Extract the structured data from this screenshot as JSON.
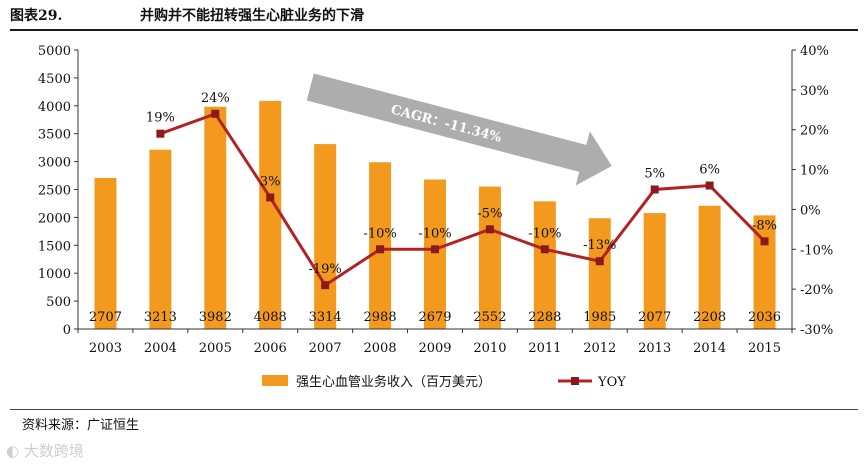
{
  "header": {
    "figure_number": "图表29.",
    "title": "并购并不能扭转强生心脏业务的下滑"
  },
  "footer": {
    "source": "资料来源：广证恒生",
    "watermark": "大数跨境"
  },
  "colors": {
    "bar": "#F39A1E",
    "line": "#B22222",
    "marker": "#8B1A1A",
    "arrow": "#A6A6A6"
  },
  "chart_data": {
    "type": "bar",
    "title": "并购并不能扭转强生心脏业务的下滑",
    "categories": [
      "2003",
      "2004",
      "2005",
      "2006",
      "2007",
      "2008",
      "2009",
      "2010",
      "2011",
      "2012",
      "2013",
      "2014",
      "2015"
    ],
    "series": [
      {
        "name": "强生心血管业务收入（百万美元）",
        "type": "bar",
        "axis": "left",
        "values": [
          2707,
          3213,
          3982,
          4088,
          3314,
          2988,
          2679,
          2552,
          2288,
          1985,
          2077,
          2208,
          2036
        ],
        "labels": [
          "2707",
          "3213",
          "3982",
          "4088",
          "3314",
          "2988",
          "2679",
          "2552",
          "2288",
          "1985",
          "2077",
          "2208",
          "2036"
        ]
      },
      {
        "name": "YOY",
        "type": "line",
        "axis": "right",
        "values": [
          null,
          19,
          24,
          3,
          -19,
          -10,
          -10,
          -5,
          -10,
          -13,
          5,
          6,
          -8
        ],
        "labels": [
          "",
          "19%",
          "24%",
          "3%",
          "-19%",
          "-10%",
          "-10%",
          "-5%",
          "-10%",
          "-13%",
          "5%",
          "6%",
          "-8%"
        ]
      }
    ],
    "left_axis": {
      "ylim": [
        0,
        5000
      ],
      "ticks": [
        "0",
        "500",
        "1000",
        "1500",
        "2000",
        "2500",
        "3000",
        "3500",
        "4000",
        "4500",
        "5000"
      ]
    },
    "right_axis": {
      "ylim": [
        -30,
        40
      ],
      "ticks": [
        "-30%",
        "-20%",
        "-10%",
        "0%",
        "10%",
        "20%",
        "30%",
        "40%"
      ]
    },
    "annotation": {
      "text": "CAGR：-11.34%",
      "from_category": "2006",
      "to_category": "2012"
    },
    "legend_position": "bottom",
    "legend": [
      {
        "label": "强生心血管业务收入（百万美元）",
        "kind": "bar"
      },
      {
        "label": "YOY",
        "kind": "line"
      }
    ]
  }
}
